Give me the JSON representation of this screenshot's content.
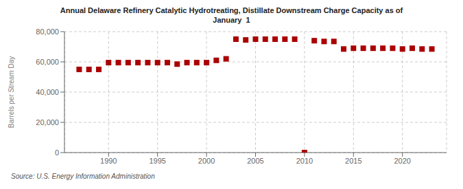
{
  "chart_data": {
    "type": "scatter",
    "title": "Annual Delaware Refinery Catalytic Hydrotreating, Distillate Downstream Charge Capacity as of\nJanuary  1",
    "ylabel": "Barrels per Stream Day",
    "source": "Source: U.S. Energy Information Administration",
    "x": [
      1987,
      1988,
      1989,
      1990,
      1991,
      1992,
      1993,
      1994,
      1995,
      1996,
      1997,
      1998,
      1999,
      2000,
      2001,
      2002,
      2003,
      2004,
      2005,
      2006,
      2007,
      2008,
      2009,
      2010,
      2011,
      2012,
      2013,
      2014,
      2015,
      2016,
      2017,
      2018,
      2019,
      2020,
      2021,
      2022,
      2023
    ],
    "values": [
      55000,
      55000,
      55000,
      59500,
      59500,
      59500,
      59500,
      59500,
      59500,
      59500,
      58500,
      59500,
      59500,
      59500,
      61000,
      62000,
      75000,
      74500,
      75000,
      75000,
      75000,
      75000,
      75000,
      0,
      74000,
      73500,
      73500,
      68500,
      69000,
      69000,
      69000,
      69000,
      69000,
      68500,
      69000,
      68500,
      68500
    ],
    "color": "#aa0000",
    "marker": "square",
    "xlim": [
      1985.5,
      2024.5
    ],
    "xticks": [
      1990,
      1995,
      2000,
      2005,
      2010,
      2015,
      2020
    ],
    "ylim": [
      0,
      80000
    ],
    "yticks": [
      0,
      {
        "value": 20000,
        "label": "20,000"
      },
      {
        "value": 40000,
        "label": "40,000"
      },
      {
        "value": 60000,
        "label": "60,000"
      },
      {
        "value": 80000,
        "label": "80,000"
      }
    ],
    "grid": true
  }
}
